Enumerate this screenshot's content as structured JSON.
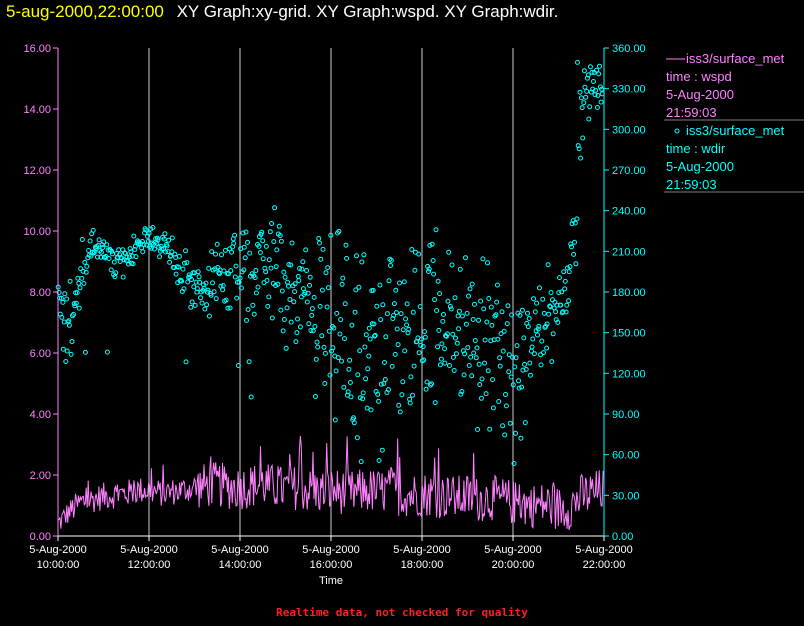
{
  "header": {
    "datetime": "5-aug-2000,22:00:00",
    "graph_titles": "XY Graph:xy-grid.  XY Graph:wspd.  XY Graph:wdir."
  },
  "footer": {
    "note": "Realtime data, not checked for quality"
  },
  "colors": {
    "background": "#000000",
    "wspd": "#ff80ff",
    "wdir": "#00ffff",
    "grid": "#ffffff",
    "header_date": "#ffff00",
    "footer": "#ff2020"
  },
  "legend": [
    {
      "marker": "line",
      "name": "iss3/surface_met",
      "field": "time : wspd",
      "date": "5-Aug-2000",
      "time": "21:59:03"
    },
    {
      "marker": "circle",
      "name": "iss3/surface_met",
      "field": "time : wdir",
      "date": "5-Aug-2000",
      "time": "21:59:03"
    }
  ],
  "chart_data": {
    "type": "line+scatter",
    "title": "XY Graph",
    "xlabel": "Time",
    "xlim_hours": [
      10,
      22
    ],
    "x_ticks": [
      {
        "hour": 10,
        "date": "5-Aug-2000",
        "time": "10:00:00"
      },
      {
        "hour": 12,
        "date": "5-Aug-2000",
        "time": "12:00:00"
      },
      {
        "hour": 14,
        "date": "5-Aug-2000",
        "time": "14:00:00"
      },
      {
        "hour": 16,
        "date": "5-Aug-2000",
        "time": "16:00:00"
      },
      {
        "hour": 18,
        "date": "5-Aug-2000",
        "time": "18:00:00"
      },
      {
        "hour": 20,
        "date": "5-Aug-2000",
        "time": "20:00:00"
      },
      {
        "hour": 22,
        "date": "5-Aug-2000",
        "time": "22:00:00"
      }
    ],
    "left_axis": {
      "series": "wspd",
      "ylim": [
        0,
        16
      ],
      "ticks": [
        "0.00",
        "2.00",
        "4.00",
        "6.00",
        "8.00",
        "10.00",
        "12.00",
        "14.00",
        "16.00"
      ]
    },
    "right_axis": {
      "series": "wdir",
      "ylim": [
        0,
        360
      ],
      "ticks": [
        "0.00",
        "30.00",
        "60.00",
        "90.00",
        "120.00",
        "150.00",
        "180.00",
        "210.00",
        "240.00",
        "270.00",
        "300.00",
        "330.00",
        "360.00"
      ]
    },
    "vertical_grid_hours": [
      12,
      14,
      16,
      18,
      20
    ],
    "series": [
      {
        "name": "wspd",
        "style": "line",
        "axis": "left",
        "x_hours": [
          10.0,
          10.25,
          10.5,
          10.75,
          11.0,
          11.25,
          11.5,
          11.75,
          12.0,
          12.25,
          12.5,
          12.75,
          13.0,
          13.25,
          13.5,
          13.75,
          14.0,
          14.25,
          14.5,
          14.75,
          15.0,
          15.25,
          15.5,
          15.75,
          16.0,
          16.25,
          16.5,
          16.75,
          17.0,
          17.25,
          17.5,
          17.75,
          18.0,
          18.25,
          18.5,
          18.75,
          19.0,
          19.25,
          19.5,
          19.75,
          20.0,
          20.25,
          20.5,
          20.75,
          21.0,
          21.25,
          21.5,
          21.75,
          21.98
        ],
        "values": [
          0.4,
          0.8,
          1.1,
          1.2,
          1.3,
          1.35,
          1.4,
          1.5,
          1.5,
          1.4,
          1.45,
          1.5,
          1.6,
          1.65,
          1.7,
          1.6,
          1.6,
          1.65,
          1.7,
          1.6,
          1.55,
          1.6,
          1.5,
          1.45,
          1.5,
          1.45,
          1.4,
          1.5,
          1.45,
          1.5,
          1.4,
          1.35,
          1.4,
          1.35,
          1.3,
          1.25,
          1.3,
          1.2,
          1.25,
          1.2,
          1.1,
          1.05,
          1.0,
          1.05,
          0.9,
          0.95,
          1.3,
          1.4,
          1.5
        ]
      },
      {
        "name": "wdir",
        "style": "scatter",
        "axis": "right",
        "x_hours": [
          10.0,
          10.25,
          10.5,
          10.75,
          11.0,
          11.25,
          11.5,
          11.75,
          12.0,
          12.25,
          12.5,
          12.75,
          13.0,
          13.25,
          13.5,
          13.75,
          14.0,
          14.25,
          14.5,
          14.75,
          15.0,
          15.25,
          15.5,
          15.75,
          16.0,
          16.25,
          16.5,
          16.75,
          17.0,
          17.25,
          17.5,
          17.75,
          18.0,
          18.25,
          18.5,
          18.75,
          19.0,
          19.25,
          19.5,
          19.75,
          20.0,
          20.25,
          20.5,
          20.75,
          21.0,
          21.25,
          21.5,
          21.75,
          21.98
        ],
        "values": [
          175,
          150,
          190,
          215,
          210,
          200,
          205,
          215,
          220,
          215,
          210,
          195,
          185,
          180,
          190,
          200,
          195,
          190,
          200,
          195,
          185,
          175,
          165,
          160,
          155,
          150,
          140,
          130,
          135,
          145,
          150,
          140,
          145,
          160,
          165,
          150,
          145,
          140,
          135,
          130,
          110,
          120,
          150,
          160,
          170,
          195,
          310,
          335,
          330
        ],
        "spread": [
          8,
          40,
          10,
          12,
          10,
          10,
          10,
          8,
          8,
          8,
          12,
          18,
          18,
          20,
          25,
          30,
          30,
          35,
          35,
          40,
          45,
          50,
          55,
          60,
          65,
          65,
          70,
          70,
          70,
          65,
          65,
          65,
          65,
          60,
          60,
          55,
          55,
          55,
          55,
          50,
          50,
          45,
          40,
          35,
          30,
          25,
          30,
          15,
          12
        ]
      }
    ]
  }
}
